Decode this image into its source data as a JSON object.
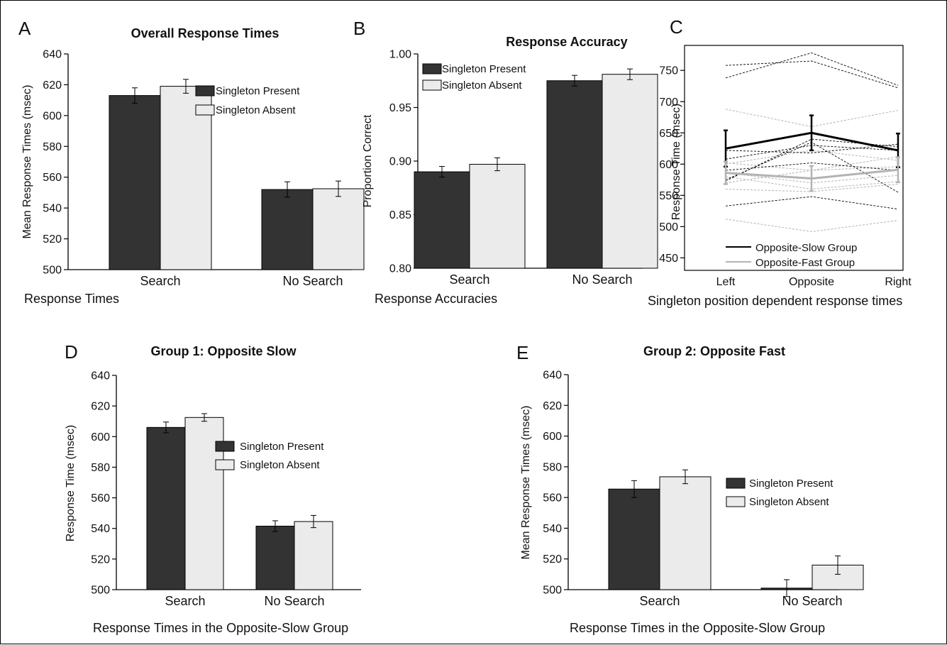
{
  "colors": {
    "present": "#333333",
    "absent": "#ebebeb",
    "slow": "#000000",
    "fast": "#b3b3b3"
  },
  "chart_data": [
    {
      "panel": "A",
      "type": "bar",
      "title": "Overall Response Times",
      "ylabel": "Mean Response Times (msec)",
      "xlabel": "Response Times",
      "categories": [
        "Search",
        "No Search"
      ],
      "series": [
        {
          "name": "Singleton Present",
          "values": [
            613,
            552
          ],
          "errors": [
            5,
            5
          ]
        },
        {
          "name": "Singleton Absent",
          "values": [
            619,
            552.5
          ],
          "errors": [
            4.5,
            5
          ]
        }
      ],
      "ylim": [
        500,
        640
      ],
      "yticks": [
        500,
        520,
        540,
        560,
        580,
        600,
        620,
        640
      ],
      "legend": "top-right"
    },
    {
      "panel": "B",
      "type": "bar",
      "title": "Response Accuracy",
      "ylabel": "Proportion Correct",
      "xlabel": "Response Accuracies",
      "categories": [
        "Search",
        "No Search"
      ],
      "series": [
        {
          "name": "Singleton Present",
          "values": [
            0.89,
            0.975
          ],
          "errors": [
            0.005,
            0.005
          ]
        },
        {
          "name": "Singleton Absent",
          "values": [
            0.897,
            0.981
          ],
          "errors": [
            0.006,
            0.005
          ]
        }
      ],
      "ylim": [
        0.8,
        1.0
      ],
      "yticks": [
        "0.80",
        "0.85",
        "0.90",
        "0.95",
        "1.00"
      ],
      "legend": "top-left"
    },
    {
      "panel": "C",
      "type": "line",
      "ylabel": "Response Time (msec)",
      "xlabel": "Singleton position dependent  response times",
      "x": [
        "Left",
        "Opposite",
        "Right"
      ],
      "ylim": [
        430,
        790
      ],
      "yticks": [
        450,
        500,
        550,
        600,
        650,
        700,
        750
      ],
      "series": [
        {
          "name": "Opposite-Slow Group",
          "values": [
            625,
            650,
            622
          ],
          "errors": [
            29,
            28,
            27
          ]
        },
        {
          "name": "Opposite-Fast Group",
          "values": [
            586,
            577,
            591
          ],
          "errors": [
            18,
            20,
            20
          ]
        }
      ],
      "individual_slow": [
        [
          758,
          765,
          722
        ],
        [
          738,
          778,
          726
        ],
        [
          573,
          640,
          628
        ],
        [
          575,
          635,
          555
        ],
        [
          590,
          602,
          590
        ],
        [
          533,
          548,
          528
        ],
        [
          622,
          618,
          632
        ],
        [
          608,
          630,
          622
        ]
      ],
      "individual_fast": [
        [
          688,
          660,
          686
        ],
        [
          512,
          492,
          510
        ],
        [
          600,
          622,
          606
        ],
        [
          580,
          560,
          572
        ],
        [
          586,
          570,
          582
        ],
        [
          570,
          590,
          596
        ],
        [
          602,
          590,
          612
        ],
        [
          560,
          556,
          568
        ]
      ],
      "legend": "bottom-left"
    },
    {
      "panel": "D",
      "type": "bar",
      "title": "Group 1: Opposite Slow",
      "ylabel": "Response Time (msec)",
      "xlabel": "Response Times in the Opposite-Slow Group",
      "categories": [
        "Search",
        "No Search"
      ],
      "series": [
        {
          "name": "Singleton Present",
          "values": [
            606,
            541.5
          ],
          "errors": [
            3.5,
            3.5
          ]
        },
        {
          "name": "Singleton Absent",
          "values": [
            612.5,
            544.5
          ],
          "errors": [
            2.5,
            4
          ]
        }
      ],
      "ylim": [
        500,
        640
      ],
      "yticks": [
        500,
        520,
        540,
        560,
        580,
        600,
        620,
        640
      ],
      "legend": "right"
    },
    {
      "panel": "E",
      "type": "bar",
      "title": "Group 2: Opposite Fast",
      "ylabel": "Mean Response Times (msec)",
      "xlabel": "Response Times in the Opposite-Slow Group",
      "categories": [
        "Search",
        "No Search"
      ],
      "series": [
        {
          "name": "Singleton Present",
          "values": [
            565.5,
            501
          ],
          "errors": [
            5.5,
            5.5
          ]
        },
        {
          "name": "Singleton Absent",
          "values": [
            573.5,
            516
          ],
          "errors": [
            4.5,
            6
          ]
        }
      ],
      "ylim": [
        500,
        640
      ],
      "yticks": [
        500,
        520,
        540,
        560,
        580,
        600,
        620,
        640
      ],
      "legend": "right"
    }
  ]
}
